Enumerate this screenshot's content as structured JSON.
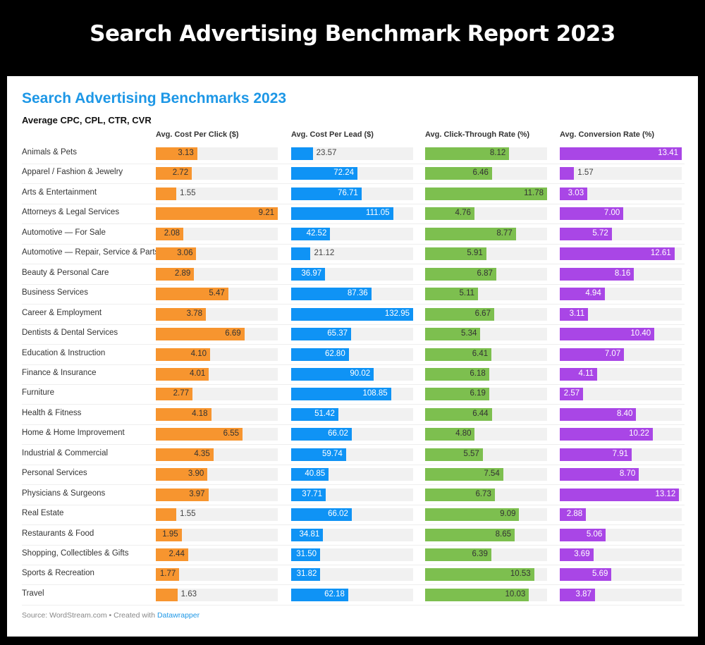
{
  "page_title": "Search Advertising Benchmark Report 2023",
  "chart_data": {
    "type": "bar",
    "title": "Search Advertising Benchmarks 2023",
    "subtitle": "Average CPC, CPL, CTR, CVR",
    "categories": [
      "Animals & Pets",
      "Apparel / Fashion & Jewelry",
      "Arts & Entertainment",
      "Attorneys & Legal Services",
      "Automotive — For Sale",
      "Automotive — Repair, Service & Parts",
      "Beauty & Personal Care",
      "Business Services",
      "Career & Employment",
      "Dentists & Dental Services",
      "Education & Instruction",
      "Finance & Insurance",
      "Furniture",
      "Health & Fitness",
      "Home & Home Improvement",
      "Industrial & Commercial",
      "Personal Services",
      "Physicians & Surgeons",
      "Real Estate",
      "Restaurants & Food",
      "Shopping, Collectibles & Gifts",
      "Sports & Recreation",
      "Travel"
    ],
    "series": [
      {
        "name": "Avg. Cost Per Click ($)",
        "color": "#f7952f",
        "label_color": "#333333",
        "values": [
          3.13,
          2.72,
          1.55,
          9.21,
          2.08,
          3.06,
          2.89,
          5.47,
          3.78,
          6.69,
          4.1,
          4.01,
          2.77,
          4.18,
          6.55,
          4.35,
          3.9,
          3.97,
          1.55,
          1.95,
          2.44,
          1.77,
          1.63
        ]
      },
      {
        "name": "Avg. Cost Per Lead ($)",
        "color": "#0f93f5",
        "label_color": "#ffffff",
        "values": [
          23.57,
          72.24,
          76.71,
          111.05,
          42.52,
          21.12,
          36.97,
          87.36,
          132.95,
          65.37,
          62.8,
          90.02,
          108.85,
          51.42,
          66.02,
          59.74,
          40.85,
          37.71,
          66.02,
          34.81,
          31.5,
          31.82,
          62.18
        ]
      },
      {
        "name": "Avg. Click-Through Rate (%)",
        "color": "#7dbf4f",
        "label_color": "#333333",
        "values": [
          8.12,
          6.46,
          11.78,
          4.76,
          8.77,
          5.91,
          6.87,
          5.11,
          6.67,
          5.34,
          6.41,
          6.18,
          6.19,
          6.44,
          4.8,
          5.57,
          7.54,
          6.73,
          9.09,
          8.65,
          6.39,
          10.53,
          10.03
        ]
      },
      {
        "name": "Avg. Conversion Rate (%)",
        "color": "#a946e6",
        "label_color": "#ffffff",
        "values": [
          13.41,
          1.57,
          3.03,
          7.0,
          5.72,
          12.61,
          8.16,
          4.94,
          3.11,
          10.4,
          7.07,
          4.11,
          2.57,
          8.4,
          10.22,
          7.91,
          8.7,
          13.12,
          2.88,
          5.06,
          3.69,
          5.69,
          3.87
        ]
      }
    ]
  },
  "footer": {
    "source": "Source: WordStream.com • Created with ",
    "link": "Datawrapper"
  }
}
